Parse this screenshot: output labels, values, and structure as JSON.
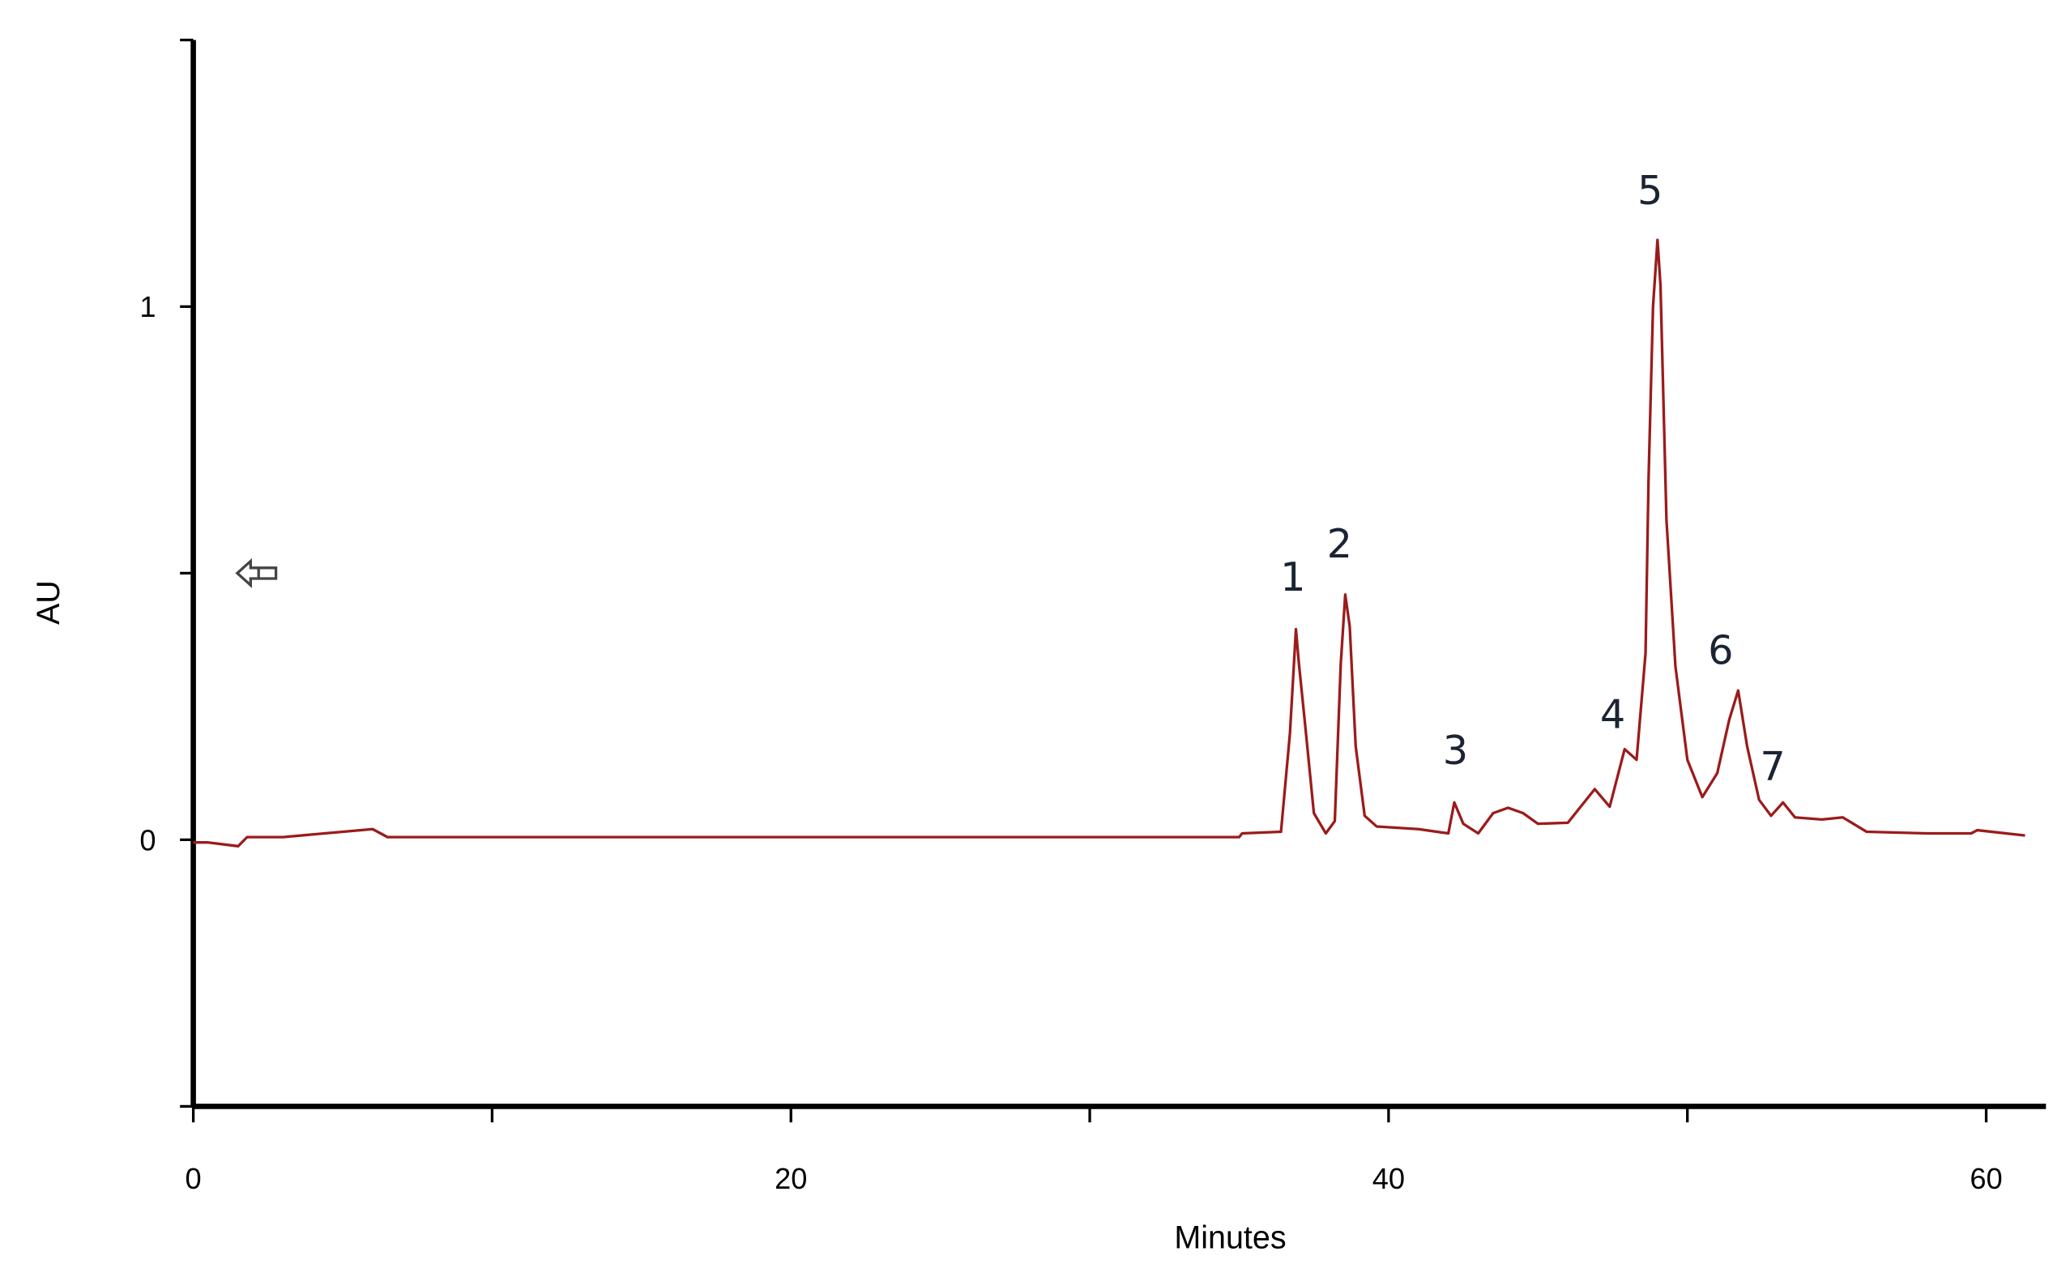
{
  "chart_data": {
    "type": "line",
    "x_label": "Minutes",
    "y_label": "AU",
    "xlim": [
      0,
      62
    ],
    "ylim": [
      -0.5,
      1.5
    ],
    "xticks": [
      0,
      20,
      40,
      60
    ],
    "x_minor_ticks": [
      10,
      30,
      50
    ],
    "yticks": [
      0,
      1
    ],
    "y_minor_ticks": [
      -0.5,
      0.5,
      1.5
    ],
    "color": "#9b1b1b",
    "x": [
      0,
      0.5,
      1.5,
      1.8,
      3,
      6,
      6.5,
      35,
      35.1,
      36.4,
      36.7,
      36.9,
      37.0,
      37.2,
      37.5,
      37.9,
      38.2,
      38.4,
      38.55,
      38.7,
      38.9,
      39.2,
      39.6,
      41,
      42,
      42.2,
      42.5,
      43,
      43.5,
      44,
      44.5,
      45,
      46,
      46.9,
      47.4,
      47.9,
      48.3,
      48.6,
      48.7,
      48.85,
      49.0,
      49.1,
      49.3,
      49.6,
      50,
      50.5,
      51,
      51.4,
      51.7,
      52.0,
      52.4,
      52.8,
      53.2,
      53.6,
      54.5,
      55.2,
      56,
      58,
      59.5,
      59.7,
      61.3
    ],
    "values": [
      -0.005,
      -0.005,
      -0.012,
      0.005,
      0.005,
      0.02,
      0.005,
      0.005,
      0.012,
      0.015,
      0.2,
      0.395,
      0.33,
      0.22,
      0.05,
      0.012,
      0.035,
      0.33,
      0.46,
      0.4,
      0.175,
      0.045,
      0.025,
      0.02,
      0.012,
      0.07,
      0.03,
      0.012,
      0.05,
      0.06,
      0.05,
      0.03,
      0.032,
      0.095,
      0.062,
      0.17,
      0.15,
      0.35,
      0.675,
      1.0,
      1.125,
      1.04,
      0.6,
      0.325,
      0.15,
      0.08,
      0.125,
      0.225,
      0.28,
      0.175,
      0.075,
      0.045,
      0.07,
      0.042,
      0.038,
      0.042,
      0.015,
      0.012,
      0.012,
      0.018,
      0.008
    ],
    "annotations": [
      "1",
      "2",
      "3",
      "4",
      "5",
      "6",
      "7"
    ]
  }
}
